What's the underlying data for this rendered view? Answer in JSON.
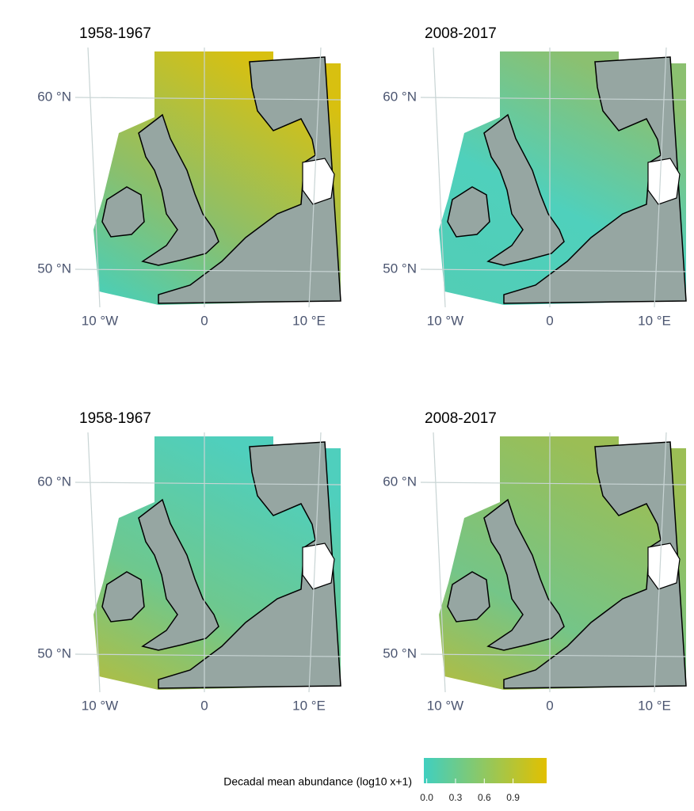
{
  "panels": [
    {
      "title": "1958-1967"
    },
    {
      "title": "2008-2017"
    },
    {
      "title": "1958-1967"
    },
    {
      "title": "2008-2017"
    }
  ],
  "axes": {
    "lat_ticks": [
      {
        "value": 60,
        "label": "60 °N"
      },
      {
        "value": 50,
        "label": "50 °N"
      }
    ],
    "lon_ticks": [
      {
        "value": -10,
        "label": "10 °W"
      },
      {
        "value": 0,
        "label": "0"
      },
      {
        "value": 10,
        "label": "10 °E"
      }
    ]
  },
  "legend": {
    "title": "Decadal mean abundance (log10 x+1)",
    "range": [
      -0.03,
      1.25
    ],
    "colors": [
      "#40cfc0",
      "#e2c000"
    ],
    "ticks": [
      {
        "value": 0,
        "label": "0.0"
      },
      {
        "value": 0.3,
        "label": "0.3"
      },
      {
        "value": 0.6,
        "label": "0.6"
      },
      {
        "value": 0.9,
        "label": "0.9"
      }
    ]
  }
}
